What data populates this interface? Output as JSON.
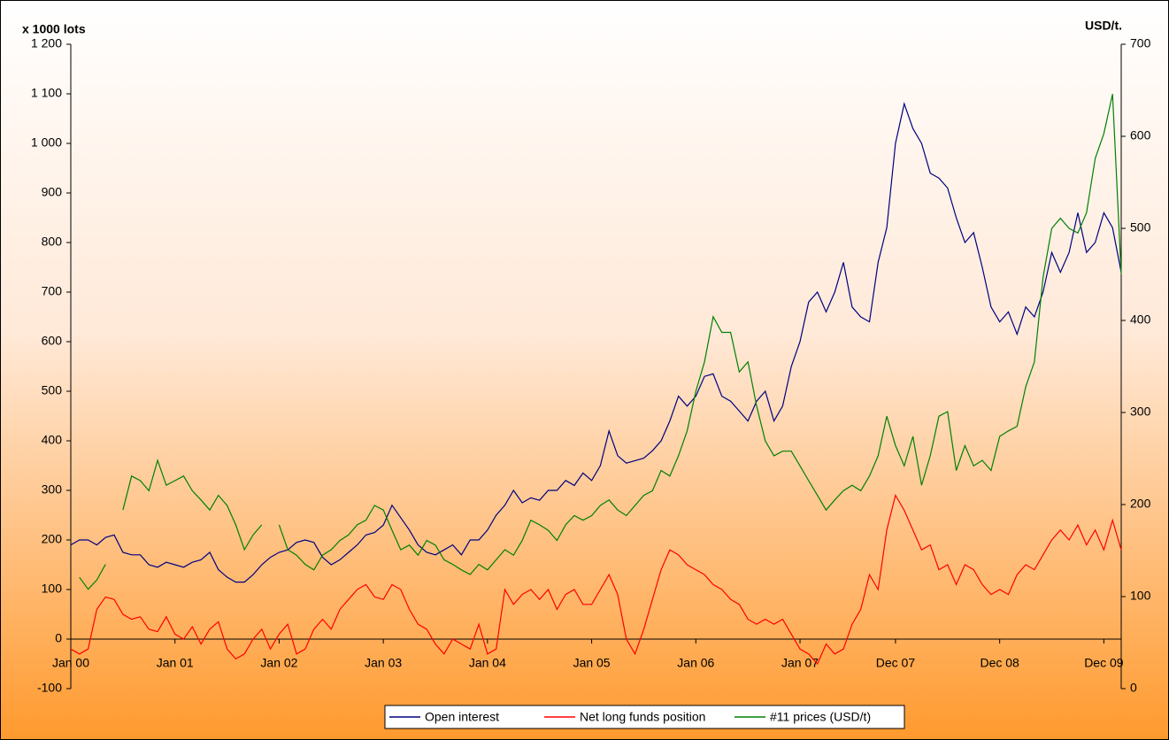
{
  "chart_data": {
    "type": "line",
    "y_label": "x 1000 lots",
    "y2_label": "USD/t.",
    "categories": [
      "Jan 00",
      null,
      null,
      null,
      null,
      null,
      null,
      null,
      null,
      null,
      null,
      null,
      "Jan 01",
      null,
      null,
      null,
      null,
      null,
      null,
      null,
      null,
      null,
      null,
      null,
      "Jan 02",
      null,
      null,
      null,
      null,
      null,
      null,
      null,
      null,
      null,
      null,
      null,
      "Jan 03",
      null,
      null,
      null,
      null,
      null,
      null,
      null,
      null,
      null,
      null,
      null,
      "Jan 04",
      null,
      null,
      null,
      null,
      null,
      null,
      null,
      null,
      null,
      null,
      null,
      "Jan 05",
      null,
      null,
      null,
      null,
      null,
      null,
      null,
      null,
      null,
      null,
      null,
      "Jan 06",
      null,
      null,
      null,
      null,
      null,
      null,
      null,
      null,
      null,
      null,
      null,
      "Jan 07",
      null,
      null,
      null,
      null,
      null,
      null,
      null,
      null,
      null,
      null,
      "Dec 07",
      null,
      null,
      null,
      null,
      null,
      null,
      null,
      null,
      null,
      null,
      null,
      "Dec 08",
      null,
      null,
      null,
      null,
      null,
      null,
      null,
      null,
      null,
      null,
      null,
      "Dec 09",
      null,
      null
    ],
    "series": [
      {
        "name": "Open interest",
        "color": "#000080",
        "values": [
          190,
          200,
          200,
          190,
          205,
          210,
          175,
          170,
          170,
          150,
          145,
          155,
          150,
          145,
          155,
          160,
          175,
          140,
          125,
          115,
          115,
          130,
          150,
          165,
          175,
          180,
          195,
          200,
          195,
          165,
          150,
          160,
          175,
          190,
          210,
          215,
          230,
          270,
          245,
          220,
          190,
          175,
          170,
          180,
          190,
          170,
          200,
          200,
          220,
          250,
          270,
          300,
          275,
          285,
          280,
          300,
          300,
          320,
          310,
          335,
          320,
          350,
          420,
          370,
          355,
          360,
          365,
          380,
          400,
          440,
          490,
          470,
          490,
          530,
          535,
          490,
          480,
          460,
          440,
          480,
          500,
          440,
          470,
          550,
          600,
          680,
          700,
          660,
          700,
          760,
          670,
          650,
          640,
          760,
          830,
          1000,
          1080,
          1030,
          1000,
          940,
          930,
          910,
          850,
          800,
          820,
          750,
          670,
          640,
          660,
          615,
          670,
          650,
          700,
          780,
          740,
          780,
          860,
          780,
          800,
          860,
          830,
          740
        ]
      },
      {
        "name": "Net long funds position",
        "color": "#ff0000",
        "values": [
          -20,
          -30,
          -20,
          60,
          85,
          80,
          50,
          40,
          45,
          20,
          15,
          45,
          10,
          0,
          25,
          -10,
          20,
          35,
          -20,
          -40,
          -30,
          0,
          20,
          -20,
          10,
          30,
          -30,
          -20,
          20,
          40,
          20,
          60,
          80,
          100,
          110,
          85,
          80,
          110,
          100,
          60,
          30,
          20,
          -10,
          -30,
          0,
          -10,
          -20,
          30,
          -30,
          -20,
          100,
          70,
          90,
          100,
          80,
          100,
          60,
          90,
          100,
          70,
          70,
          100,
          130,
          90,
          0,
          -30,
          20,
          80,
          140,
          180,
          170,
          150,
          140,
          130,
          110,
          100,
          80,
          70,
          40,
          30,
          40,
          30,
          40,
          10,
          -20,
          -30,
          -50,
          -10,
          -30,
          -20,
          30,
          60,
          130,
          100,
          220,
          290,
          260,
          220,
          180,
          190,
          140,
          150,
          110,
          150,
          140,
          110,
          90,
          100,
          90,
          130,
          150,
          140,
          170,
          200,
          220,
          200,
          230,
          190,
          220,
          180,
          240,
          180
        ]
      },
      {
        "name": "#11 prices (USD/t)",
        "color": "#008000",
        "axis": "y2",
        "values": [
          null,
          121,
          108,
          118,
          135,
          null,
          194,
          231,
          226,
          215,
          248,
          221,
          226,
          231,
          215,
          205,
          194,
          210,
          199,
          178,
          151,
          167,
          178,
          null,
          178,
          151,
          145,
          135,
          129,
          145,
          151,
          161,
          167,
          178,
          183,
          199,
          194,
          172,
          151,
          156,
          145,
          161,
          156,
          140,
          135,
          129,
          124,
          135,
          129,
          140,
          151,
          145,
          161,
          183,
          178,
          172,
          161,
          178,
          188,
          183,
          188,
          199,
          205,
          194,
          188,
          199,
          210,
          215,
          237,
          231,
          253,
          280,
          323,
          355,
          404,
          387,
          387,
          344,
          355,
          307,
          269,
          253,
          258,
          258,
          242,
          226,
          210,
          194,
          205,
          215,
          221,
          215,
          231,
          253,
          296,
          264,
          242,
          274,
          221,
          253,
          296,
          301,
          237,
          264,
          242,
          248,
          237,
          274,
          280,
          285,
          328,
          355,
          447,
          500,
          511,
          500,
          495,
          517,
          576,
          603,
          646,
          450
        ]
      }
    ],
    "ylim": [
      -100,
      1200
    ],
    "yticks": [
      -100,
      0,
      100,
      200,
      300,
      400,
      500,
      600,
      700,
      800,
      900,
      {
        "value": 1000,
        "label": "1 000"
      },
      {
        "value": 1100,
        "label": "1 100"
      },
      {
        "value": 1200,
        "label": "1 200"
      }
    ],
    "y2lim": [
      0,
      700
    ],
    "y2ticks": [
      0,
      100,
      200,
      300,
      400,
      500,
      600,
      700
    ],
    "legend": "bottom"
  }
}
